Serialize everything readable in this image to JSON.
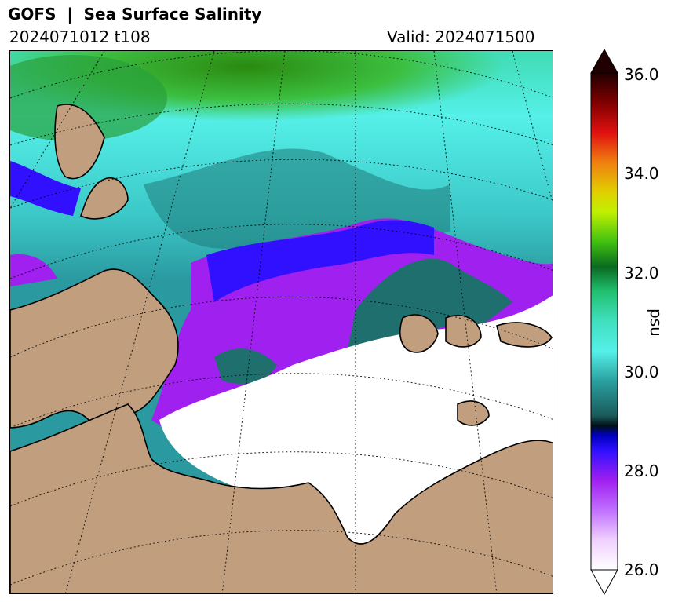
{
  "header": {
    "title": "GOFS  |  Sea Surface Salinity",
    "run": "2024071012 t108",
    "valid": "Valid: 2024071500"
  },
  "colorbar": {
    "unit": "psu",
    "ticks": [
      "36.0",
      "34.0",
      "32.0",
      "30.0",
      "28.0",
      "26.0"
    ],
    "range": [
      26.0,
      36.0
    ],
    "extend": "both"
  },
  "colors": {
    "land": "#c19e7e",
    "fresh": "#ffffff",
    "violet": "#a020f0",
    "blue": "#3010ff",
    "teal": "#1f7a7a",
    "cyan": "#55f0e8",
    "green": "#20c040",
    "dark_green": "#2a8a10"
  }
}
